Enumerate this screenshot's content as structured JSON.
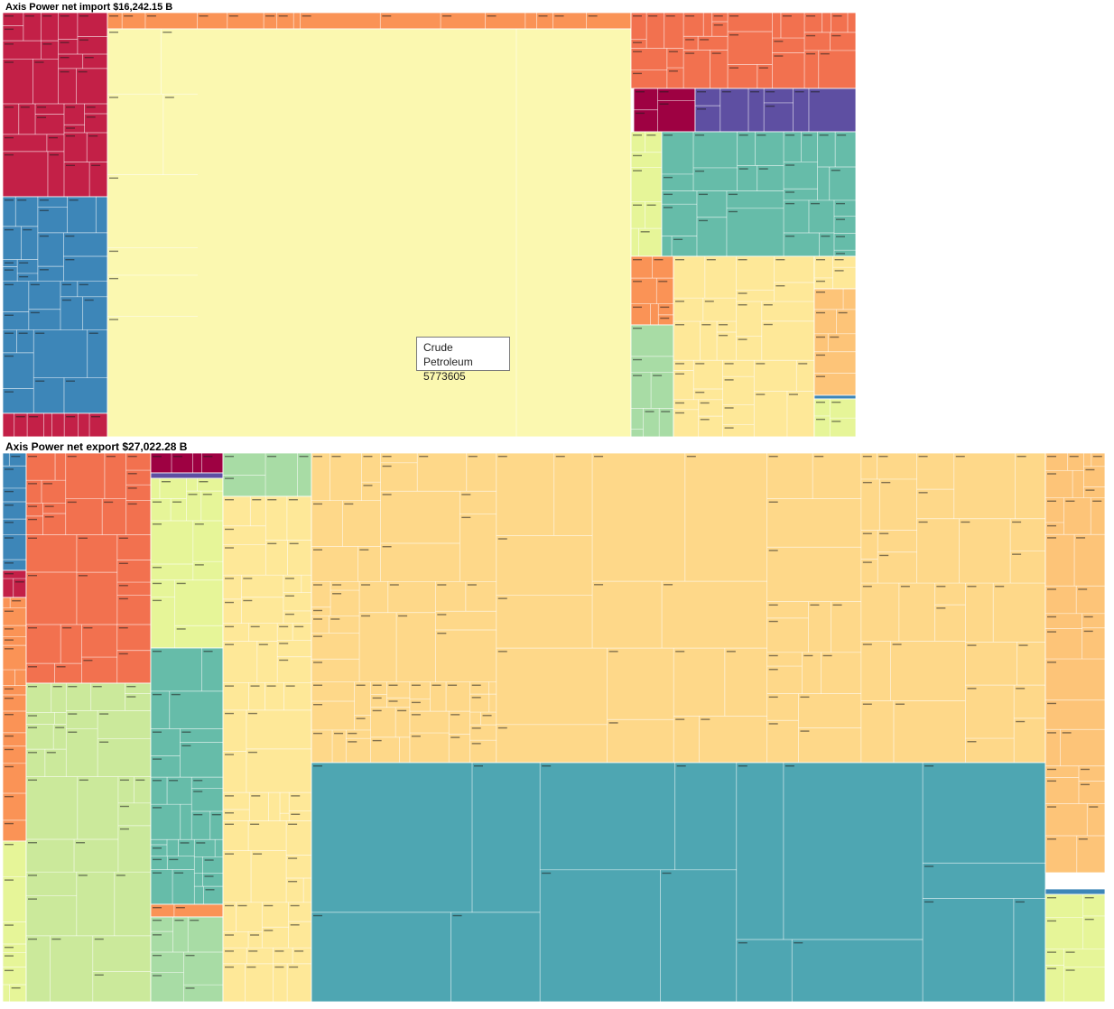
{
  "chart_data": [
    {
      "type": "treemap",
      "title": "Axis Power net import $16,242.15 B",
      "groups": [
        {
          "name": "Crude Petroleum",
          "color": "#fbf8b0",
          "value": 5773605
        },
        {
          "name": "",
          "color": "#c32047"
        },
        {
          "name": "",
          "color": "#3d86b8"
        },
        {
          "name": "",
          "color": "#f2714f"
        },
        {
          "name": "",
          "color": "#fa9356"
        },
        {
          "name": "",
          "color": "#9e0142"
        },
        {
          "name": "",
          "color": "#5e4fa2"
        },
        {
          "name": "",
          "color": "#66bca9"
        },
        {
          "name": "",
          "color": "#e6f598"
        },
        {
          "name": "",
          "color": "#a8dca5"
        },
        {
          "name": "",
          "color": "#fee898"
        },
        {
          "name": "",
          "color": "#fdc478"
        }
      ],
      "tooltip": {
        "label": "Crude Petroleum",
        "value": "5773605"
      }
    },
    {
      "type": "treemap",
      "title": "Axis Power net export $27,022.28 B",
      "groups": [
        {
          "name": "",
          "color": "#3d86b8"
        },
        {
          "name": "",
          "color": "#c32047"
        },
        {
          "name": "",
          "color": "#f2714f"
        },
        {
          "name": "",
          "color": "#fa9356"
        },
        {
          "name": "",
          "color": "#9e0142"
        },
        {
          "name": "",
          "color": "#5e4fa2"
        },
        {
          "name": "",
          "color": "#a8dca5"
        },
        {
          "name": "",
          "color": "#e6f598"
        },
        {
          "name": "",
          "color": "#cbe99b"
        },
        {
          "name": "",
          "color": "#66bca9"
        },
        {
          "name": "",
          "color": "#fee898"
        },
        {
          "name": "",
          "color": "#fed889"
        },
        {
          "name": "",
          "color": "#4ea6b2"
        },
        {
          "name": "",
          "color": "#fdc478"
        }
      ]
    }
  ],
  "tooltip": {
    "label": "Crude Petroleum",
    "value": "5773605"
  }
}
